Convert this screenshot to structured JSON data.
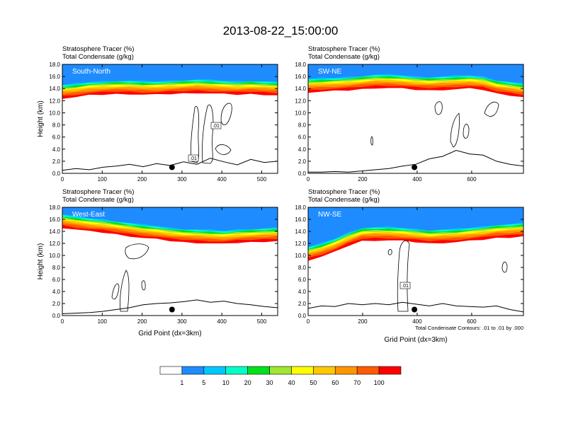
{
  "title": "2013-08-22_15:00:00",
  "chart_data": [
    {
      "type": "contour",
      "panel_label": "South-North",
      "title_lines": [
        "Stratosphere Tracer   (%)",
        "Total Condensate   (g/kg)"
      ],
      "ylabel": "Height (km)",
      "xlabel": "",
      "xlim": [
        0,
        540
      ],
      "ylim": [
        0,
        18
      ],
      "xticks": [
        "0",
        "100",
        "200",
        "300",
        "400",
        "500"
      ],
      "xtick_values": [
        0,
        100,
        200,
        300,
        400,
        500
      ],
      "yticks": [
        "0.0",
        "2.0",
        "4.0",
        "6.0",
        "8.0",
        "10.0",
        "12.0",
        "14.0",
        "16.0",
        "18.0"
      ],
      "tracer_base_km": [
        12.4,
        12.6,
        12.9,
        13.0,
        13.1,
        13.1,
        13.0,
        13.0,
        13.1,
        13.2,
        13.3,
        13.2,
        13.1,
        13.0,
        13.1,
        13.0,
        12.9
      ],
      "terrain_km": [
        0.5,
        0.8,
        0.6,
        1.0,
        1.2,
        1.5,
        1.1,
        1.6,
        1.3,
        1.9,
        1.5,
        2.5,
        1.9,
        1.4,
        2.3,
        1.8,
        2.0
      ],
      "marker": {
        "x": 275,
        "y_km": 1.0
      },
      "contour_labels": [
        ".01",
        ".01"
      ]
    },
    {
      "type": "contour",
      "panel_label": "SW-NE",
      "title_lines": [
        "Stratosphere Tracer   (%)",
        "Total Condensate   (g/kg)"
      ],
      "ylabel": "",
      "xlabel": "",
      "xlim": [
        0,
        790
      ],
      "ylim": [
        0,
        18
      ],
      "xticks": [
        "0",
        "200",
        "400",
        "600"
      ],
      "xtick_values": [
        0,
        200,
        400,
        600
      ],
      "yticks": [
        "0.0",
        "2.0",
        "4.0",
        "6.0",
        "8.0",
        "10.0",
        "12.0",
        "14.0",
        "16.0",
        "18.0"
      ],
      "tracer_base_km": [
        13.4,
        13.5,
        13.6,
        13.7,
        13.9,
        14.1,
        14.1,
        14.0,
        13.8,
        13.7,
        13.8,
        13.9,
        14.0,
        13.8,
        13.2,
        12.9,
        12.6
      ],
      "terrain_km": [
        0.2,
        0.2,
        0.3,
        0.2,
        0.4,
        0.6,
        0.8,
        1.2,
        1.5,
        2.4,
        2.8,
        3.8,
        3.2,
        3.0,
        2.0,
        1.5,
        1.2
      ],
      "marker": {
        "x": 390,
        "y_km": 1.0
      },
      "contour_labels": []
    },
    {
      "type": "contour",
      "panel_label": "West-East",
      "title_lines": [
        "Stratosphere Tracer   (%)",
        "Total Condensate   (g/kg)"
      ],
      "ylabel": "Height (km)",
      "xlabel": "Grid Point (dx=3km)",
      "xlim": [
        0,
        540
      ],
      "ylim": [
        0,
        18
      ],
      "xticks": [
        "0",
        "100",
        "200",
        "300",
        "400",
        "500"
      ],
      "xtick_values": [
        0,
        100,
        200,
        300,
        400,
        500
      ],
      "yticks": [
        "0.0",
        "2.0",
        "4.0",
        "6.0",
        "8.0",
        "10.0",
        "12.0",
        "14.0",
        "16.0",
        "18.0"
      ],
      "tracer_base_km": [
        14.6,
        14.3,
        14.0,
        13.8,
        13.5,
        13.2,
        12.9,
        12.7,
        12.4,
        12.2,
        12.1,
        12.0,
        11.9,
        12.1,
        12.2,
        12.3,
        12.4
      ],
      "terrain_km": [
        0.3,
        0.4,
        0.5,
        0.7,
        1.0,
        1.3,
        1.8,
        2.0,
        2.1,
        2.3,
        2.6,
        2.2,
        2.4,
        2.0,
        1.8,
        1.5,
        1.3
      ],
      "marker": {
        "x": 275,
        "y_km": 1.0
      },
      "contour_labels": []
    },
    {
      "type": "contour",
      "panel_label": "NW-SE",
      "title_lines": [
        "Stratosphere Tracer   (%)",
        "Total Condensate   (g/kg)"
      ],
      "ylabel": "",
      "xlabel": "Grid Point (dx=3km)",
      "xlim": [
        0,
        790
      ],
      "ylim": [
        0,
        18
      ],
      "xticks": [
        "0",
        "200",
        "400",
        "600"
      ],
      "xtick_values": [
        0,
        200,
        400,
        600
      ],
      "yticks": [
        "0.0",
        "2.0",
        "4.0",
        "6.0",
        "8.0",
        "10.0",
        "12.0",
        "14.0",
        "16.0",
        "18.0"
      ],
      "tracer_base_km": [
        9.2,
        9.8,
        10.6,
        11.6,
        12.4,
        12.5,
        12.5,
        12.4,
        12.2,
        12.0,
        12.1,
        12.2,
        12.4,
        12.6,
        12.9,
        13.0,
        13.2
      ],
      "terrain_km": [
        1.2,
        1.6,
        1.5,
        2.0,
        1.8,
        2.0,
        1.8,
        2.2,
        1.9,
        1.6,
        2.0,
        1.6,
        1.5,
        1.4,
        1.6,
        1.0,
        0.6
      ],
      "marker": {
        "x": 390,
        "y_km": 1.0
      },
      "contour_labels": [
        ".01"
      ],
      "note": "Total Condensate Contours: .01 to .01 by .000"
    }
  ],
  "colorbar": {
    "labels": [
      "1",
      "5",
      "10",
      "20",
      "30",
      "40",
      "50",
      "60",
      "70",
      "100"
    ],
    "colors": [
      "#ffffff",
      "#1e8cff",
      "#00c8ff",
      "#00ffc8",
      "#00e11e",
      "#a0e632",
      "#ffff00",
      "#ffc800",
      "#ff9600",
      "#ff5a00",
      "#ff0000"
    ]
  }
}
